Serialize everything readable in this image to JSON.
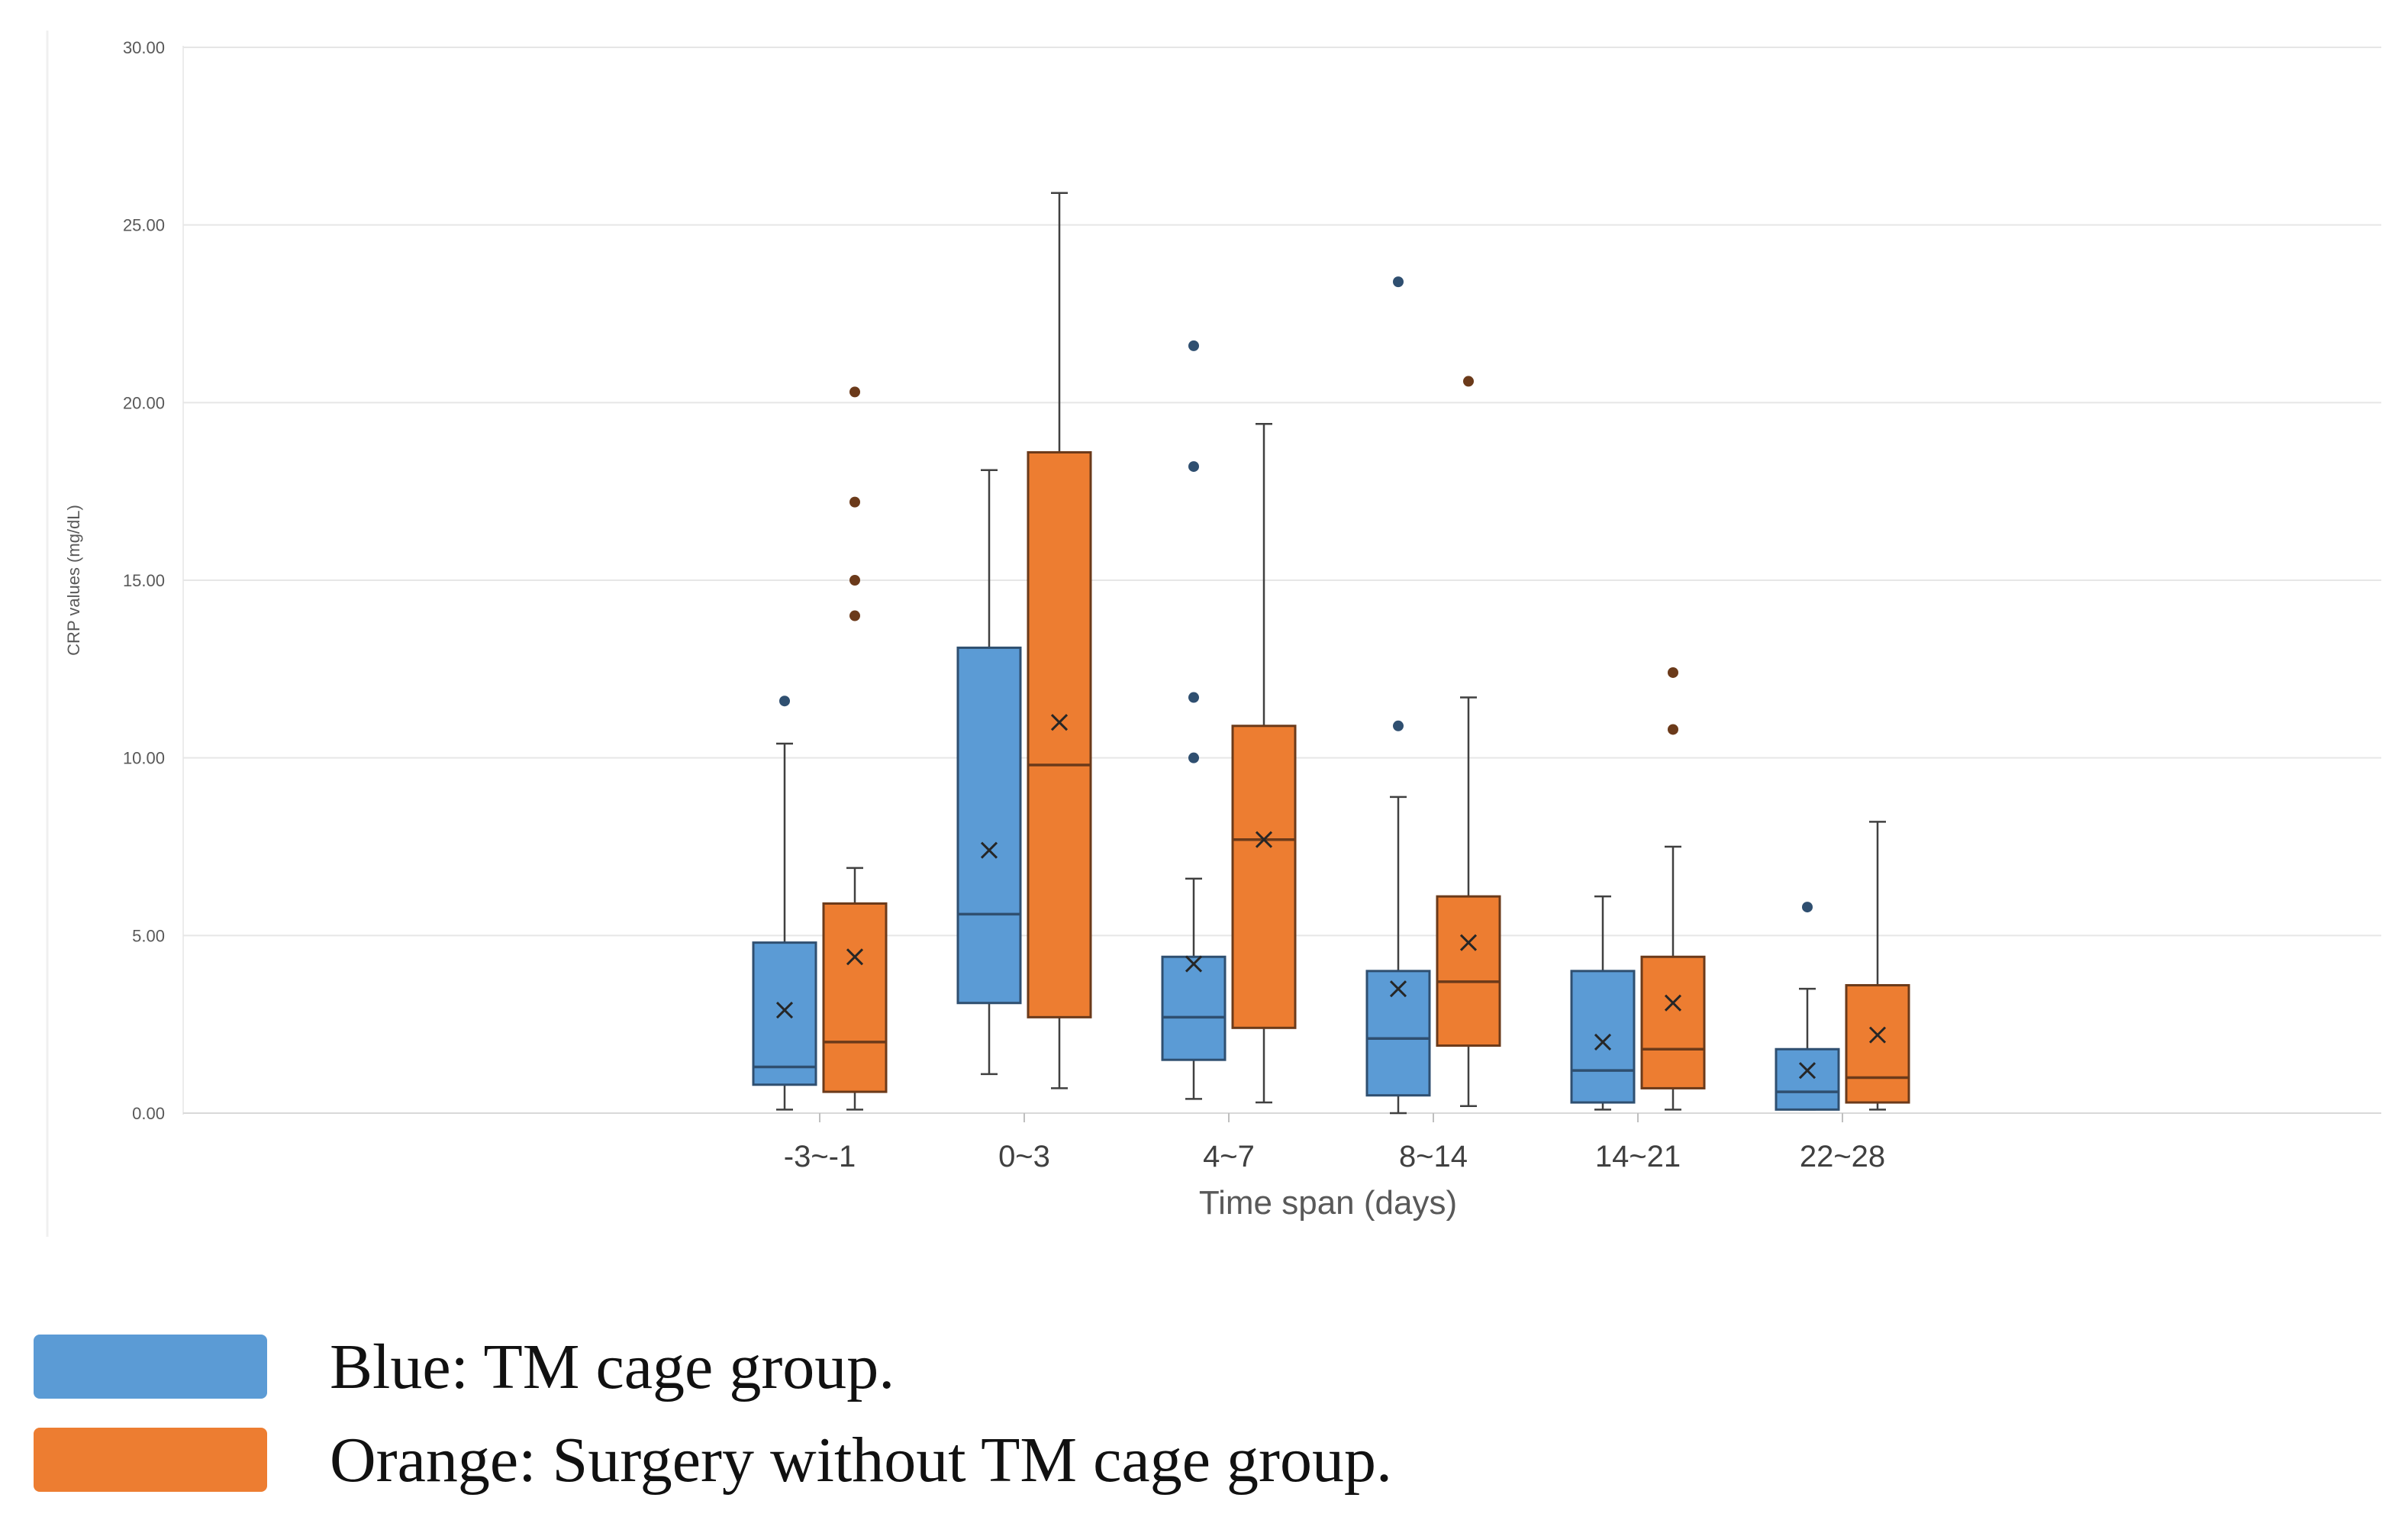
{
  "chart_data": {
    "type": "box",
    "title": "",
    "xlabel": "Time span (days)",
    "ylabel": "CRP values (mg/dL)",
    "ylim": [
      0,
      30
    ],
    "yticks": [
      "0.00",
      "5.00",
      "10.00",
      "15.00",
      "20.00",
      "25.00",
      "30.00"
    ],
    "grid": true,
    "categories": [
      "-3~-1",
      "0~3",
      "4~7",
      "8~14",
      "14~21",
      "22~28"
    ],
    "series": [
      {
        "color": "#5B9BD5",
        "stroke": "#2F4F70",
        "boxes": [
          {
            "min": 0.1,
            "q1": 0.8,
            "median": 1.3,
            "q3": 4.8,
            "max": 10.4,
            "mean": 2.9,
            "outliers": [
              11.6
            ]
          },
          {
            "min": 1.1,
            "q1": 3.1,
            "median": 5.6,
            "q3": 13.1,
            "max": 18.1,
            "mean": 7.4,
            "outliers": []
          },
          {
            "min": 0.4,
            "q1": 1.5,
            "median": 2.7,
            "q3": 4.4,
            "max": 6.6,
            "mean": 4.2,
            "outliers": [
              10.0,
              11.7,
              18.2,
              21.6
            ]
          },
          {
            "min": 0.0,
            "q1": 0.5,
            "median": 2.1,
            "q3": 4.0,
            "max": 8.9,
            "mean": 3.5,
            "outliers": [
              10.9,
              23.4
            ]
          },
          {
            "min": 0.1,
            "q1": 0.3,
            "median": 1.2,
            "q3": 4.0,
            "max": 6.1,
            "mean": 2.0,
            "outliers": []
          },
          {
            "min": 0.1,
            "q1": 0.1,
            "median": 0.6,
            "q3": 1.8,
            "max": 3.5,
            "mean": 1.2,
            "outliers": [
              5.8
            ]
          }
        ]
      },
      {
        "color": "#ED7D31",
        "stroke": "#6B3A1A",
        "boxes": [
          {
            "min": 0.1,
            "q1": 0.6,
            "median": 2.0,
            "q3": 5.9,
            "max": 6.9,
            "mean": 4.4,
            "outliers": [
              14.0,
              15.0,
              17.2,
              20.3
            ]
          },
          {
            "min": 0.7,
            "q1": 2.7,
            "median": 9.8,
            "q3": 18.6,
            "max": 25.9,
            "mean": 11.0,
            "outliers": []
          },
          {
            "min": 0.3,
            "q1": 2.4,
            "median": 7.7,
            "q3": 10.9,
            "max": 19.4,
            "mean": 7.7,
            "outliers": []
          },
          {
            "min": 0.2,
            "q1": 1.9,
            "median": 3.7,
            "q3": 6.1,
            "max": 11.7,
            "mean": 4.8,
            "outliers": [
              20.6
            ]
          },
          {
            "min": 0.1,
            "q1": 0.7,
            "median": 1.8,
            "q3": 4.4,
            "max": 7.5,
            "mean": 3.1,
            "outliers": [
              10.8,
              12.4
            ]
          },
          {
            "min": 0.1,
            "q1": 0.3,
            "median": 1.0,
            "q3": 3.6,
            "max": 8.2,
            "mean": 2.2,
            "outliers": []
          }
        ]
      }
    ]
  },
  "legend": {
    "items": [
      {
        "color": "#5B9BD5",
        "text": "Blue: TM cage group."
      },
      {
        "color": "#ED7D31",
        "text": "Orange: Surgery without TM cage group."
      }
    ]
  }
}
